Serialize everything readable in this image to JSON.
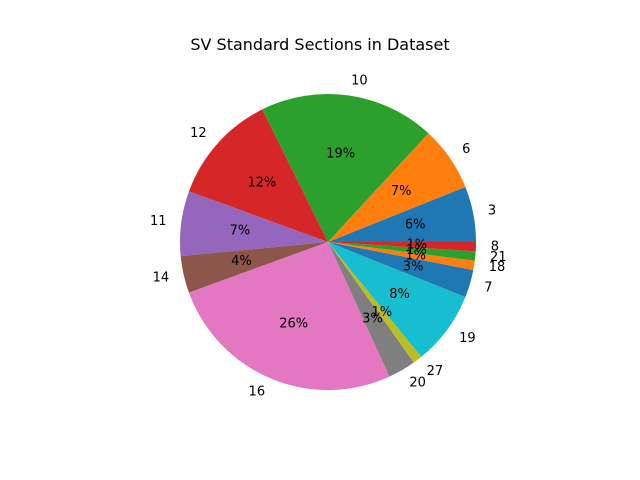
{
  "chart_data": {
    "type": "pie",
    "title": "SV Standard Sections in Dataset",
    "start_angle_deg": 0,
    "direction": "counterclockwise",
    "slices": [
      {
        "label": "3",
        "value": 6,
        "pct_label": "6%",
        "color": "#1f77b4"
      },
      {
        "label": "6",
        "value": 7,
        "pct_label": "7%",
        "color": "#ff7f0e"
      },
      {
        "label": "10",
        "value": 19,
        "pct_label": "19%",
        "color": "#2ca02c"
      },
      {
        "label": "12",
        "value": 12,
        "pct_label": "12%",
        "color": "#d62728"
      },
      {
        "label": "11",
        "value": 7,
        "pct_label": "7%",
        "color": "#9467bd"
      },
      {
        "label": "14",
        "value": 4,
        "pct_label": "4%",
        "color": "#8c564b"
      },
      {
        "label": "16",
        "value": 26,
        "pct_label": "26%",
        "color": "#e377c2"
      },
      {
        "label": "20",
        "value": 3,
        "pct_label": "3%",
        "color": "#7f7f7f"
      },
      {
        "label": "27",
        "value": 1,
        "pct_label": "1%",
        "color": "#bcbd22"
      },
      {
        "label": "19",
        "value": 8,
        "pct_label": "8%",
        "color": "#17becf"
      },
      {
        "label": "7",
        "value": 3,
        "pct_label": "3%",
        "color": "#1f77b4"
      },
      {
        "label": "18",
        "value": 1,
        "pct_label": "1%",
        "color": "#ff7f0e"
      },
      {
        "label": "21",
        "value": 1,
        "pct_label": "1%",
        "color": "#2ca02c"
      },
      {
        "label": "8",
        "value": 1,
        "pct_label": "1%",
        "color": "#d62728"
      }
    ]
  }
}
